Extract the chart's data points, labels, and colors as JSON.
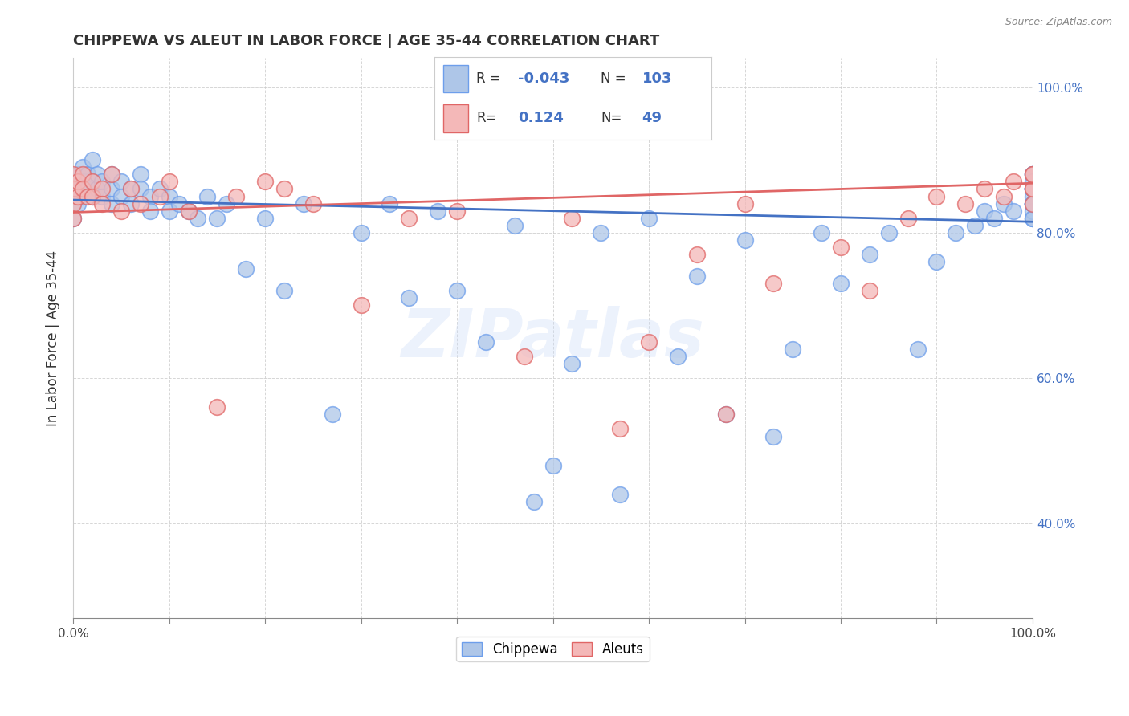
{
  "title": "CHIPPEWA VS ALEUT IN LABOR FORCE | AGE 35-44 CORRELATION CHART",
  "ylabel": "In Labor Force | Age 35-44",
  "source_text": "Source: ZipAtlas.com",
  "watermark": "ZIPatlas",
  "chippewa_R": -0.043,
  "chippewa_N": 103,
  "aleut_R": 0.124,
  "aleut_N": 49,
  "chippewa_face": "#aec6e8",
  "chippewa_edge": "#6d9eeb",
  "aleut_face": "#f4b8b8",
  "aleut_edge": "#e06666",
  "chippewa_line": "#4472c4",
  "aleut_line": "#e06666",
  "legend_chippewa": "Chippewa",
  "legend_aleuts": "Aleuts",
  "xlim": [
    0.0,
    1.0
  ],
  "ylim": [
    0.27,
    1.04
  ],
  "chip_trend": [
    0.845,
    0.815
  ],
  "aleut_trend": [
    0.828,
    0.868
  ],
  "right_ytick_labels": [
    "40.0%",
    "60.0%",
    "80.0%",
    "100.0%"
  ],
  "right_ytick_values": [
    0.4,
    0.6,
    0.8,
    1.0
  ],
  "chip_x": [
    0.0,
    0.0,
    0.0,
    0.0,
    0.0,
    0.005,
    0.005,
    0.005,
    0.01,
    0.01,
    0.01,
    0.015,
    0.015,
    0.02,
    0.02,
    0.02,
    0.025,
    0.025,
    0.03,
    0.03,
    0.04,
    0.04,
    0.04,
    0.05,
    0.05,
    0.06,
    0.06,
    0.07,
    0.07,
    0.08,
    0.08,
    0.09,
    0.1,
    0.1,
    0.11,
    0.12,
    0.13,
    0.14,
    0.15,
    0.16,
    0.18,
    0.2,
    0.22,
    0.24,
    0.27,
    0.3,
    0.33,
    0.35,
    0.38,
    0.4,
    0.43,
    0.46,
    0.48,
    0.5,
    0.52,
    0.55,
    0.57,
    0.6,
    0.63,
    0.65,
    0.68,
    0.7,
    0.73,
    0.75,
    0.78,
    0.8,
    0.83,
    0.85,
    0.88,
    0.9,
    0.92,
    0.94,
    0.95,
    0.96,
    0.97,
    0.98,
    1.0,
    1.0,
    1.0,
    1.0,
    1.0,
    1.0,
    1.0,
    1.0,
    1.0,
    1.0,
    1.0,
    1.0,
    1.0,
    1.0,
    1.0,
    1.0,
    1.0,
    1.0,
    1.0,
    1.0,
    1.0,
    1.0,
    1.0,
    1.0,
    1.0,
    1.0,
    1.0
  ],
  "chip_y": [
    0.86,
    0.84,
    0.82,
    0.87,
    0.85,
    0.88,
    0.86,
    0.84,
    0.89,
    0.87,
    0.85,
    0.88,
    0.86,
    0.9,
    0.87,
    0.85,
    0.88,
    0.86,
    0.87,
    0.85,
    0.88,
    0.86,
    0.84,
    0.87,
    0.85,
    0.86,
    0.84,
    0.88,
    0.86,
    0.85,
    0.83,
    0.86,
    0.85,
    0.83,
    0.84,
    0.83,
    0.82,
    0.85,
    0.82,
    0.84,
    0.75,
    0.82,
    0.72,
    0.84,
    0.55,
    0.8,
    0.84,
    0.71,
    0.83,
    0.72,
    0.65,
    0.81,
    0.43,
    0.48,
    0.62,
    0.8,
    0.44,
    0.82,
    0.63,
    0.74,
    0.55,
    0.79,
    0.52,
    0.64,
    0.8,
    0.73,
    0.77,
    0.8,
    0.64,
    0.76,
    0.8,
    0.81,
    0.83,
    0.82,
    0.84,
    0.83,
    0.84,
    0.86,
    0.88,
    0.84,
    0.86,
    0.88,
    0.84,
    0.86,
    0.82,
    0.84,
    0.86,
    0.84,
    0.86,
    0.88,
    0.84,
    0.82,
    0.86,
    0.84,
    0.88,
    0.83,
    0.85,
    0.87,
    0.84,
    0.86,
    0.82,
    0.84,
    0.86
  ],
  "aleut_x": [
    0.0,
    0.0,
    0.0,
    0.0,
    0.005,
    0.005,
    0.01,
    0.01,
    0.015,
    0.02,
    0.02,
    0.03,
    0.03,
    0.04,
    0.05,
    0.06,
    0.07,
    0.09,
    0.1,
    0.12,
    0.15,
    0.17,
    0.2,
    0.22,
    0.25,
    0.3,
    0.35,
    0.4,
    0.47,
    0.52,
    0.57,
    0.6,
    0.65,
    0.68,
    0.7,
    0.73,
    0.8,
    0.83,
    0.87,
    0.9,
    0.93,
    0.95,
    0.97,
    0.98,
    1.0,
    1.0,
    1.0,
    1.0,
    1.0
  ],
  "aleut_y": [
    0.88,
    0.86,
    0.84,
    0.82,
    0.87,
    0.85,
    0.88,
    0.86,
    0.85,
    0.87,
    0.85,
    0.86,
    0.84,
    0.88,
    0.83,
    0.86,
    0.84,
    0.85,
    0.87,
    0.83,
    0.56,
    0.85,
    0.87,
    0.86,
    0.84,
    0.7,
    0.82,
    0.83,
    0.63,
    0.82,
    0.53,
    0.65,
    0.77,
    0.55,
    0.84,
    0.73,
    0.78,
    0.72,
    0.82,
    0.85,
    0.84,
    0.86,
    0.85,
    0.87,
    0.88,
    0.86,
    0.84,
    0.86,
    0.88
  ]
}
